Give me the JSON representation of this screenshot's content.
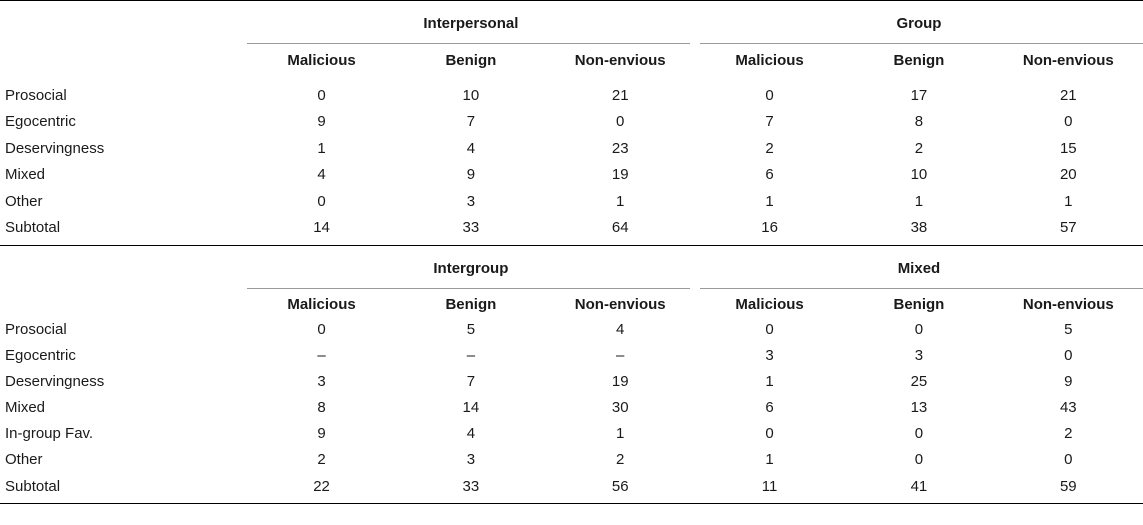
{
  "column_headers": [
    "Malicious",
    "Benign",
    "Non-envious"
  ],
  "panels": [
    {
      "left_group": "Interpersonal",
      "right_group": "Group",
      "rows": [
        {
          "label": "Prosocial",
          "left": [
            "0",
            "10",
            "21"
          ],
          "right": [
            "0",
            "17",
            "21"
          ]
        },
        {
          "label": "Egocentric",
          "left": [
            "9",
            "7",
            "0"
          ],
          "right": [
            "7",
            "8",
            "0"
          ]
        },
        {
          "label": "Deservingness",
          "left": [
            "1",
            "4",
            "23"
          ],
          "right": [
            "2",
            "2",
            "15"
          ]
        },
        {
          "label": "Mixed",
          "left": [
            "4",
            "9",
            "19"
          ],
          "right": [
            "6",
            "10",
            "20"
          ]
        },
        {
          "label": "Other",
          "left": [
            "0",
            "3",
            "1"
          ],
          "right": [
            "1",
            "1",
            "1"
          ]
        },
        {
          "label": "Subtotal",
          "left": [
            "14",
            "33",
            "64"
          ],
          "right": [
            "16",
            "38",
            "57"
          ]
        }
      ]
    },
    {
      "left_group": "Intergroup",
      "right_group": "Mixed",
      "rows": [
        {
          "label": "Prosocial",
          "left": [
            "0",
            "5",
            "4"
          ],
          "right": [
            "0",
            "0",
            "5"
          ]
        },
        {
          "label": "Egocentric",
          "left": [
            "–",
            "–",
            "–"
          ],
          "right": [
            "3",
            "3",
            "0"
          ]
        },
        {
          "label": "Deservingness",
          "left": [
            "3",
            "7",
            "19"
          ],
          "right": [
            "1",
            "25",
            "9"
          ]
        },
        {
          "label": "Mixed",
          "left": [
            "8",
            "14",
            "30"
          ],
          "right": [
            "6",
            "13",
            "43"
          ]
        },
        {
          "label": "In-group Fav.",
          "left": [
            "9",
            "4",
            "1"
          ],
          "right": [
            "0",
            "0",
            "2"
          ]
        },
        {
          "label": "Other",
          "left": [
            "2",
            "3",
            "2"
          ],
          "right": [
            "1",
            "0",
            "0"
          ]
        },
        {
          "label": "Subtotal",
          "left": [
            "22",
            "33",
            "56"
          ],
          "right": [
            "11",
            "41",
            "59"
          ]
        }
      ]
    }
  ]
}
